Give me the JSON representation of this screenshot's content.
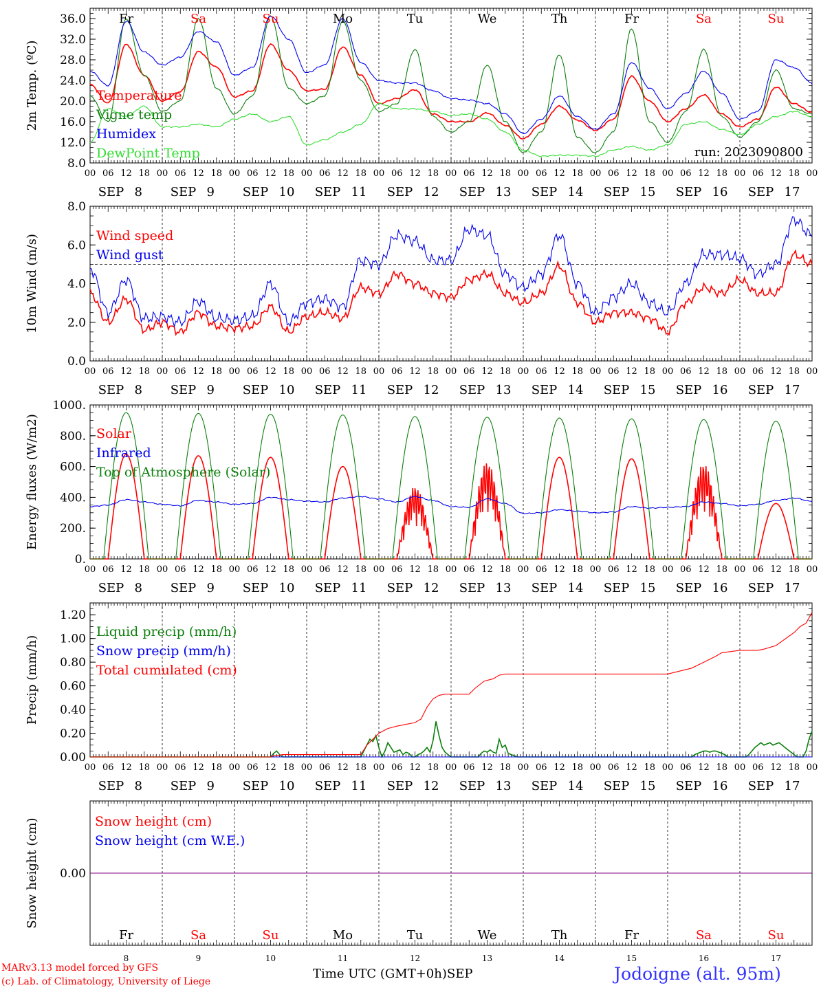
{
  "colors": {
    "red": "#ff0000",
    "green": "#0b7f0b",
    "blue": "#0000ee",
    "lime": "#33dd33",
    "purple": "#800080"
  },
  "days": {
    "dates": [
      "8",
      "9",
      "10",
      "11",
      "12",
      "13",
      "14",
      "15",
      "16",
      "17"
    ],
    "names": [
      "Fr",
      "Sa",
      "Su",
      "Mo",
      "Tu",
      "We",
      "Th",
      "Fr",
      "Sa",
      "Su"
    ],
    "weekend": [
      false,
      true,
      true,
      false,
      false,
      false,
      false,
      false,
      true,
      true
    ],
    "month": "SEP",
    "hours": [
      "00",
      "06",
      "12",
      "18"
    ]
  },
  "footer": {
    "credit1": "MARv3.13 model forced by GFS",
    "credit2": "(c) Lab. of Climatology, University of Liege",
    "xtitle": "Time UTC (GMT+0h)",
    "month": "SEP",
    "station": "Jodoigne (alt. 95m)"
  },
  "chart_data": [
    {
      "type": "line",
      "ylabel": "2m Temp. (ºC)",
      "ylim": [
        8,
        38
      ],
      "yticks": [
        "8.0",
        "12.0",
        "16.0",
        "20.0",
        "24.0",
        "28.0",
        "32.0",
        "36.0"
      ],
      "yticks_values": [
        8,
        12,
        16,
        20,
        24,
        28,
        32,
        36
      ],
      "annotation": "run: 2023090800",
      "x_unit": "hours since SEP 8 00 UTC",
      "series": [
        {
          "name": "Temperature",
          "color": "red",
          "x": [
            0,
            6,
            12,
            18,
            24,
            30,
            36,
            42,
            48,
            54,
            60,
            66,
            72,
            78,
            84,
            90,
            96,
            102,
            108,
            114,
            120,
            126,
            132,
            138,
            144,
            150,
            156,
            162,
            168,
            174,
            180,
            186,
            192,
            198,
            204,
            210,
            216,
            222,
            228,
            234,
            240
          ],
          "y": [
            23.2,
            19.6,
            31.0,
            25.0,
            20.0,
            21.8,
            29.6,
            26.6,
            20.8,
            22.0,
            31.0,
            26.0,
            22.0,
            22.3,
            30.5,
            25.0,
            19.5,
            20.5,
            22.2,
            17.5,
            16.0,
            16.0,
            17.7,
            15.3,
            12.7,
            15.5,
            19.0,
            16.3,
            14.3,
            16.5,
            24.8,
            20.0,
            16.0,
            18.5,
            21.2,
            17.5,
            15.0,
            16.5,
            22.7,
            19.5,
            17.8
          ]
        },
        {
          "name": "Vigne temp",
          "color": "green",
          "x": [
            0,
            6,
            12,
            18,
            24,
            30,
            36,
            42,
            48,
            54,
            60,
            66,
            72,
            78,
            84,
            90,
            96,
            102,
            108,
            114,
            120,
            126,
            132,
            138,
            144,
            150,
            156,
            162,
            168,
            174,
            180,
            186,
            192,
            198,
            204,
            210,
            216,
            222,
            228,
            234,
            240
          ],
          "y": [
            21.0,
            16.0,
            36.0,
            25.0,
            18.0,
            20.0,
            36.0,
            22.5,
            17.5,
            21.0,
            36.5,
            22.5,
            19.5,
            21.0,
            35.5,
            24.0,
            18.0,
            19.5,
            30.0,
            17.0,
            14.0,
            16.0,
            27.0,
            16.0,
            10.0,
            14.0,
            29.0,
            13.0,
            10.0,
            14.0,
            34.0,
            16.0,
            12.0,
            18.0,
            30.0,
            17.0,
            13.0,
            16.0,
            26.0,
            18.5,
            17.5
          ]
        },
        {
          "name": "Humidex",
          "color": "blue",
          "x": [
            0,
            6,
            12,
            18,
            24,
            30,
            36,
            42,
            48,
            54,
            60,
            66,
            72,
            78,
            84,
            90,
            96,
            102,
            108,
            114,
            120,
            126,
            132,
            138,
            144,
            150,
            156,
            162,
            168,
            174,
            180,
            186,
            192,
            198,
            204,
            210,
            216,
            222,
            228,
            234,
            240
          ],
          "y": [
            25.8,
            23.0,
            35.5,
            29.5,
            27.0,
            28.5,
            33.5,
            31.5,
            25.0,
            26.5,
            36.5,
            32.0,
            25.5,
            27.0,
            36.0,
            27.5,
            24.0,
            23.5,
            23.5,
            22.0,
            20.5,
            20.2,
            19.5,
            17.5,
            13.7,
            16.5,
            21.0,
            17.0,
            14.5,
            17.5,
            27.5,
            22.5,
            18.5,
            21.5,
            25.8,
            21.5,
            16.5,
            18.0,
            28.0,
            26.5,
            23.5
          ]
        },
        {
          "name": "DewPoint Temp",
          "color": "lime",
          "x": [
            0,
            6,
            12,
            18,
            24,
            30,
            36,
            42,
            48,
            54,
            60,
            66,
            72,
            78,
            84,
            90,
            96,
            102,
            108,
            114,
            120,
            126,
            132,
            138,
            144,
            150,
            156,
            162,
            168,
            174,
            180,
            186,
            192,
            198,
            204,
            210,
            216,
            222,
            228,
            234,
            240
          ],
          "y": [
            12.0,
            18.5,
            17.0,
            19.0,
            15.0,
            15.0,
            15.5,
            15.0,
            16.5,
            17.5,
            16.0,
            17.0,
            11.5,
            12.5,
            14.0,
            15.5,
            19.5,
            18.5,
            18.5,
            18.0,
            17.2,
            17.5,
            16.5,
            14.0,
            10.5,
            9.3,
            9.5,
            9.5,
            9.3,
            10.5,
            11.2,
            10.5,
            11.5,
            15.5,
            16.0,
            14.5,
            13.5,
            15.5,
            17.0,
            18.0,
            17.0
          ]
        }
      ]
    },
    {
      "type": "line",
      "ylabel": "10m Wind (m/s)",
      "ylim": [
        0,
        8
      ],
      "yticks": [
        "0.0",
        "2.0",
        "4.0",
        "6.0",
        "8.0"
      ],
      "yticks_values": [
        0,
        2,
        4,
        6,
        8
      ],
      "reference_line": 5,
      "x_unit": "hours since SEP 8 00 UTC",
      "series": [
        {
          "name": "Wind speed",
          "color": "red",
          "x": [
            0,
            6,
            12,
            18,
            24,
            30,
            36,
            42,
            48,
            54,
            60,
            66,
            72,
            78,
            84,
            90,
            96,
            102,
            108,
            114,
            120,
            126,
            132,
            138,
            144,
            150,
            156,
            162,
            168,
            174,
            180,
            186,
            192,
            198,
            204,
            210,
            216,
            222,
            228,
            234,
            240
          ],
          "y": [
            3.5,
            2.0,
            3.2,
            1.6,
            2.0,
            1.5,
            2.5,
            1.8,
            1.7,
            1.8,
            2.8,
            1.5,
            2.3,
            2.5,
            2.2,
            3.8,
            3.5,
            4.5,
            4.0,
            3.5,
            3.3,
            4.2,
            4.5,
            3.5,
            3.0,
            3.5,
            4.9,
            3.0,
            2.0,
            2.5,
            2.5,
            2.2,
            1.5,
            3.0,
            3.8,
            3.5,
            4.2,
            3.5,
            3.5,
            5.5,
            5.0
          ]
        },
        {
          "name": "Wind gust",
          "color": "blue",
          "x": [
            0,
            6,
            12,
            18,
            24,
            30,
            36,
            42,
            48,
            54,
            60,
            66,
            72,
            78,
            84,
            90,
            96,
            102,
            108,
            114,
            120,
            126,
            132,
            138,
            144,
            150,
            156,
            162,
            168,
            174,
            180,
            186,
            192,
            198,
            204,
            210,
            216,
            222,
            228,
            234,
            240
          ],
          "y": [
            4.8,
            2.5,
            4.2,
            2.2,
            2.3,
            2.0,
            3.1,
            2.2,
            2.1,
            2.3,
            4.0,
            2.0,
            3.0,
            3.2,
            2.8,
            5.2,
            5.0,
            6.5,
            6.2,
            5.2,
            5.2,
            6.8,
            6.5,
            4.5,
            3.8,
            4.5,
            6.5,
            4.0,
            2.5,
            3.3,
            4.0,
            3.0,
            2.5,
            4.0,
            5.5,
            5.5,
            5.3,
            4.5,
            5.0,
            7.3,
            6.5
          ]
        }
      ]
    },
    {
      "type": "line",
      "ylabel": "Energy fluxes (W/m2)",
      "ylim": [
        0,
        1000
      ],
      "yticks": [
        "0.",
        "200.",
        "400.",
        "600.",
        "800.",
        "1000."
      ],
      "yticks_values": [
        0,
        200,
        400,
        600,
        800,
        1000
      ],
      "x_unit": "hours since SEP 8 00 UTC",
      "series": [
        {
          "name": "Solar",
          "color": "red",
          "day_peak": [
            680,
            670,
            660,
            600,
            470,
            630,
            660,
            650,
            620,
            360
          ]
        },
        {
          "name": "Infrared",
          "color": "blue",
          "x": [
            0,
            6,
            12,
            18,
            24,
            30,
            36,
            42,
            48,
            54,
            60,
            66,
            72,
            78,
            84,
            90,
            96,
            102,
            108,
            114,
            120,
            126,
            132,
            138,
            144,
            150,
            156,
            162,
            168,
            174,
            180,
            186,
            192,
            198,
            204,
            210,
            216,
            222,
            228,
            234,
            240
          ],
          "y": [
            340,
            350,
            385,
            370,
            355,
            345,
            380,
            370,
            355,
            360,
            400,
            385,
            375,
            370,
            395,
            405,
            390,
            370,
            405,
            380,
            340,
            335,
            390,
            360,
            295,
            300,
            320,
            310,
            300,
            305,
            340,
            330,
            335,
            340,
            370,
            360,
            345,
            355,
            380,
            395,
            375
          ]
        },
        {
          "name": "Top of Atmosphere (Solar)",
          "color": "green",
          "day_peak": [
            950,
            945,
            940,
            935,
            925,
            920,
            915,
            910,
            905,
            895
          ]
        }
      ]
    },
    {
      "type": "line",
      "ylabel": "Precip (mm/h)",
      "ylim": [
        0,
        1.3
      ],
      "yticks": [
        "0.00",
        "0.20",
        "0.40",
        "0.60",
        "0.80",
        "1.00",
        "1.20"
      ],
      "yticks_values": [
        0,
        0.2,
        0.4,
        0.6,
        0.8,
        1.0,
        1.2
      ],
      "x_unit": "hours since SEP 8 00 UTC",
      "series": [
        {
          "name": "Liquid precip (mm/h)",
          "color": "green",
          "x": [
            0,
            60,
            61,
            62,
            63,
            64,
            90,
            91,
            92,
            93,
            94,
            95,
            96,
            97,
            98,
            99,
            100,
            101,
            102,
            103,
            104,
            105,
            106,
            107,
            108,
            109,
            110,
            111,
            112,
            113,
            114,
            115,
            116,
            117,
            118,
            119,
            120,
            121,
            122,
            123,
            124,
            125,
            126,
            127,
            128,
            129,
            130,
            131,
            132,
            133,
            134,
            135,
            136,
            137,
            138,
            139,
            140,
            141,
            142,
            143,
            144,
            200,
            201,
            202,
            203,
            204,
            205,
            206,
            207,
            208,
            209,
            210,
            211,
            212,
            218,
            219,
            220,
            221,
            222,
            223,
            224,
            225,
            226,
            227,
            228,
            229,
            230,
            231,
            232,
            233,
            234,
            235,
            236,
            237,
            238,
            239,
            240
          ],
          "y": [
            0,
            0,
            0.03,
            0.05,
            0.02,
            0,
            0,
            0.05,
            0.1,
            0.15,
            0.13,
            0.18,
            0.08,
            0,
            0.05,
            0.12,
            0.08,
            0.04,
            0.05,
            0.06,
            0.02,
            0.04,
            0.03,
            0,
            0,
            0.02,
            0.03,
            0.05,
            0.08,
            0.04,
            0.14,
            0.3,
            0.18,
            0.08,
            0.04,
            0.02,
            0,
            0,
            0,
            0,
            0,
            0,
            0,
            0,
            0,
            0,
            0.03,
            0.05,
            0.04,
            0.06,
            0.04,
            0.03,
            0.15,
            0.08,
            0.1,
            0.03,
            0.02,
            0.01,
            0,
            0,
            0,
            0,
            0.02,
            0.03,
            0.04,
            0.05,
            0.05,
            0.04,
            0.05,
            0.05,
            0.04,
            0.03,
            0.02,
            0,
            0,
            0.02,
            0.05,
            0.08,
            0.1,
            0.12,
            0.1,
            0.11,
            0.12,
            0.1,
            0.11,
            0.12,
            0.1,
            0.08,
            0.06,
            0.04,
            0.02,
            0,
            0,
            0,
            0.05,
            0.15,
            0.22
          ]
        },
        {
          "name": "Snow precip (mm/h)",
          "color": "blue",
          "x": [
            0,
            240
          ],
          "y": [
            0,
            0
          ]
        },
        {
          "name": "Total cumulated (cm)",
          "color": "red",
          "x": [
            0,
            60,
            61,
            63,
            64,
            90,
            92,
            94,
            96,
            99,
            102,
            108,
            110,
            112,
            114,
            116,
            118,
            120,
            126,
            128,
            131,
            134,
            136,
            138,
            144,
            156,
            168,
            180,
            192,
            200,
            204,
            208,
            210,
            216,
            222,
            224,
            228,
            234,
            236,
            238,
            240
          ],
          "y": [
            0,
            0,
            0.01,
            0.015,
            0.02,
            0.02,
            0.1,
            0.15,
            0.2,
            0.24,
            0.26,
            0.29,
            0.32,
            0.42,
            0.49,
            0.52,
            0.53,
            0.53,
            0.53,
            0.58,
            0.64,
            0.66,
            0.69,
            0.7,
            0.7,
            0.7,
            0.7,
            0.7,
            0.7,
            0.75,
            0.8,
            0.85,
            0.88,
            0.9,
            0.9,
            0.91,
            0.94,
            1.05,
            1.1,
            1.13,
            1.22
          ]
        }
      ]
    },
    {
      "type": "line",
      "ylabel": "Snow height (cm)",
      "yticks": [
        "0.00"
      ],
      "yticks_values": [
        0
      ],
      "ylim": [
        -1,
        1
      ],
      "x_unit": "hours since SEP 8 00 UTC",
      "series": [
        {
          "name": "Snow height (cm)",
          "color": "red",
          "x": [
            0,
            240
          ],
          "y": [
            0,
            0
          ]
        },
        {
          "name": "Snow height (cm W.E.)",
          "color": "blue",
          "x": [
            0,
            240
          ],
          "y": [
            0,
            0
          ]
        }
      ]
    }
  ]
}
